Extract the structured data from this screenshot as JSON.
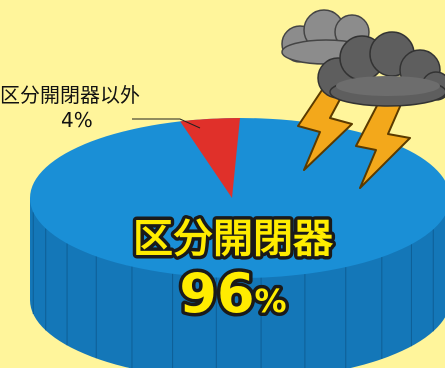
{
  "chart_data": {
    "type": "pie",
    "slices": [
      {
        "label": "区分開閉器",
        "value": 96,
        "value_text": "96",
        "unit": "%",
        "color": "#1a8fd6"
      },
      {
        "label": "区分開閉器以外",
        "value": 4,
        "value_text": "4%",
        "color": "#e0302a"
      }
    ]
  },
  "colors": {
    "background": "#fff59b",
    "pie_top": "#1a8fd6",
    "pie_side": "#1477b8",
    "pie_side_line": "#0e5e95",
    "small_slice": "#e0302a",
    "big_label_fill": "#ffec00",
    "big_label_stroke": "#1a1a1a",
    "lightning": "#f3a81b",
    "lightning_stroke": "#5a3a00",
    "cloud_light": "#8c8c8c",
    "cloud_dark": "#5e5e5e"
  },
  "icons": [
    "storm-cloud-icon",
    "lightning-bolt-icon"
  ]
}
